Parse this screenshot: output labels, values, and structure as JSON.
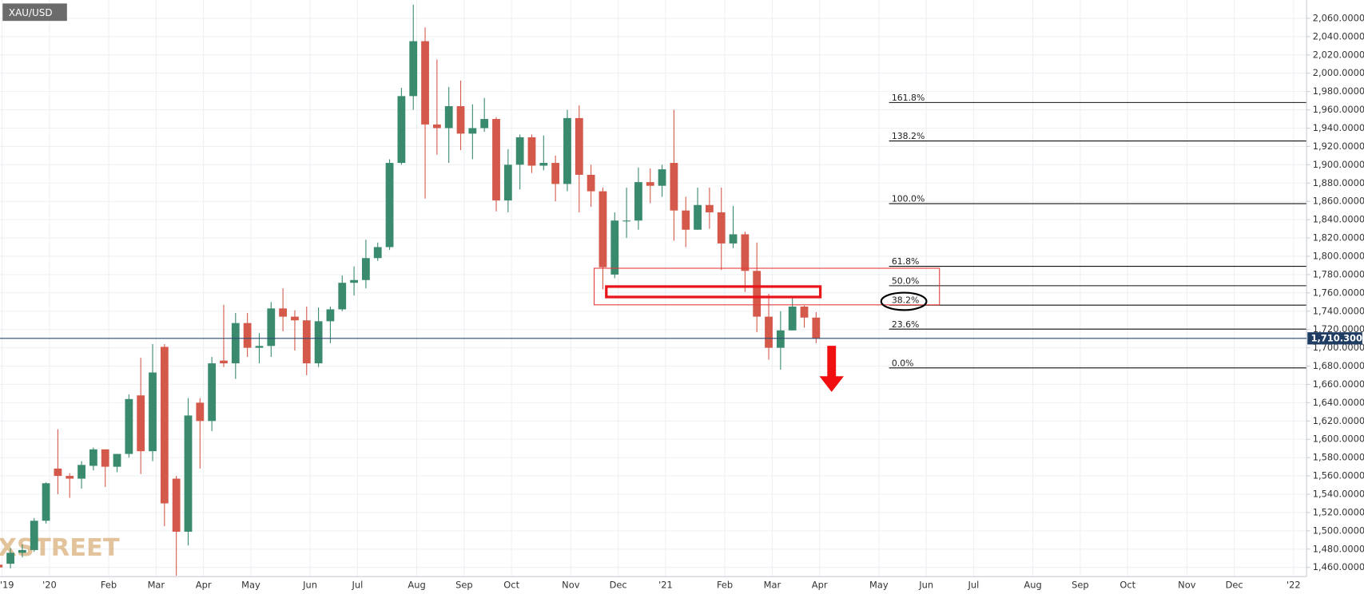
{
  "chart_data": {
    "type": "candlestick",
    "symbol": "XAU/USD",
    "watermark": "FXSTREET",
    "categories": [
      "'19",
      null,
      null,
      null,
      "'20",
      null,
      null,
      null,
      null,
      "Feb",
      null,
      null,
      null,
      "Mar",
      null,
      null,
      null,
      "Apr",
      null,
      null,
      null,
      "May",
      null,
      null,
      null,
      null,
      "Jun",
      null,
      null,
      null,
      "Jul",
      null,
      null,
      null,
      null,
      "Aug",
      null,
      null,
      null,
      "Sep",
      null,
      null,
      null,
      "Oct",
      null,
      null,
      null,
      null,
      "Nov",
      null,
      null,
      null,
      "Dec",
      null,
      null,
      null,
      "'21",
      null,
      null,
      null,
      null,
      "Feb",
      null,
      null,
      null,
      "Mar",
      null,
      null,
      null,
      "Apr",
      null,
      null,
      null,
      null,
      "May",
      null,
      null,
      null,
      "Jun",
      null,
      null,
      null,
      "Jul",
      null,
      null,
      null,
      null,
      "Aug",
      null,
      null,
      null,
      "Sep",
      null,
      null,
      null,
      "Oct",
      null,
      null,
      null,
      null,
      "Nov",
      null,
      null,
      null,
      "Dec",
      null,
      null,
      null,
      null,
      "'22",
      null
    ],
    "open": [
      1463,
      1464,
      1476,
      1479,
      1511,
      1568,
      1560,
      1557,
      1571,
      1589,
      1570,
      1584,
      1648,
      1587,
      1701,
      1557,
      1499,
      1640,
      1620,
      1686,
      1683,
      1727,
      1700,
      1702,
      1743,
      1734,
      1730,
      1683,
      1729,
      1742,
      1771,
      1774,
      1798,
      1810,
      1902,
      1975,
      2035,
      1944,
      1940,
      1964,
      1934,
      1940,
      1950,
      1861,
      1900,
      1930,
      1899,
      1902,
      1879,
      1951,
      1889,
      1871,
      1780,
      1839,
      1839,
      1881,
      1877,
      1902,
      1850,
      1829,
      1856,
      1848,
      1814,
      1824,
      1784,
      1734,
      1700,
      1719,
      1745,
      1733,
      null,
      null,
      null,
      null,
      null,
      null,
      null,
      null,
      null,
      null,
      null,
      null,
      null,
      null,
      null,
      null,
      null,
      null,
      null,
      null,
      null,
      null,
      null,
      null,
      null,
      null,
      null,
      null,
      null,
      null,
      null,
      null,
      null,
      null,
      null,
      null,
      null,
      null,
      null,
      null,
      null
    ],
    "high": [
      1468,
      1481,
      1485,
      1514,
      1553,
      1611,
      1563,
      1576,
      1591,
      1589,
      1584,
      1649,
      1689,
      1704,
      1704,
      1560,
      1645,
      1645,
      1690,
      1747,
      1738,
      1738,
      1716,
      1750,
      1765,
      1741,
      1745,
      1744,
      1745,
      1779,
      1789,
      1818,
      1815,
      1906,
      1984,
      2075,
      2050,
      2015,
      1985,
      1992,
      1966,
      1973,
      1952,
      1917,
      1933,
      1933,
      1932,
      1910,
      1960,
      1965,
      1900,
      1875,
      1848,
      1875,
      1897,
      1896,
      1900,
      1960,
      1865,
      1875,
      1875,
      1875,
      1855,
      1827,
      1815,
      1759,
      1740,
      1755,
      1746,
      1739,
      null,
      null,
      null,
      null,
      null,
      null,
      null,
      null,
      null,
      null,
      null,
      null,
      null,
      null,
      null,
      null,
      null,
      null,
      null,
      null,
      null,
      null,
      null,
      null,
      null,
      null,
      null,
      null,
      null,
      null,
      null,
      null,
      null,
      null,
      null,
      null,
      null,
      null,
      null,
      null,
      null
    ],
    "low": [
      1455,
      1459,
      1471,
      1477,
      1508,
      1540,
      1536,
      1546,
      1566,
      1548,
      1564,
      1580,
      1562,
      1576,
      1505,
      1451,
      1484,
      1568,
      1609,
      1679,
      1666,
      1690,
      1683,
      1690,
      1718,
      1697,
      1670,
      1679,
      1705,
      1740,
      1757,
      1765,
      1795,
      1807,
      1900,
      1960,
      1863,
      1911,
      1902,
      1916,
      1906,
      1936,
      1849,
      1848,
      1873,
      1891,
      1894,
      1860,
      1871,
      1848,
      1854,
      1764,
      1776,
      1820,
      1829,
      1858,
      1865,
      1817,
      1810,
      1829,
      1830,
      1785,
      1809,
      1761,
      1717,
      1687,
      1676,
      1719,
      1722,
      1705,
      null,
      null,
      null,
      null,
      null,
      null,
      null,
      null,
      null,
      null,
      null,
      null,
      null,
      null,
      null,
      null,
      null,
      null,
      null,
      null,
      null,
      null,
      null,
      null,
      null,
      null,
      null,
      null,
      null,
      null,
      null,
      null,
      null,
      null,
      null,
      null,
      null,
      null,
      null,
      null,
      null
    ],
    "close": [
      1460,
      1476,
      1479,
      1511,
      1552,
      1560,
      1557,
      1572,
      1589,
      1570,
      1584,
      1644,
      1587,
      1673,
      1530,
      1499,
      1626,
      1620,
      1683,
      1683,
      1727,
      1700,
      1702,
      1743,
      1734,
      1730,
      1683,
      1729,
      1742,
      1771,
      1774,
      1798,
      1810,
      1902,
      1975,
      2035,
      1944,
      1940,
      1964,
      1934,
      1940,
      1950,
      1861,
      1900,
      1930,
      1899,
      1902,
      1879,
      1951,
      1889,
      1871,
      1788,
      1839,
      1839,
      1881,
      1877,
      1895,
      1850,
      1829,
      1856,
      1848,
      1814,
      1824,
      1784,
      1734,
      1700,
      1719,
      1745,
      1733,
      1710,
      null,
      null,
      null,
      null,
      null,
      null,
      null,
      null,
      null,
      null,
      null,
      null,
      null,
      null,
      null,
      null,
      null,
      null,
      null,
      null,
      null,
      null,
      null,
      null,
      null,
      null,
      null,
      null,
      null,
      null,
      null,
      null,
      null,
      null,
      null,
      null,
      null,
      null,
      null,
      null,
      null
    ],
    "up_color": "#3a8a6e",
    "down_color": "#d4594a",
    "ylim": [
      1450,
      2080
    ],
    "yticks": [
      {
        "value": 1460,
        "label": "1,460.0000"
      },
      {
        "value": 1480,
        "label": "1,480.0000"
      },
      {
        "value": 1500,
        "label": "1,500.0000"
      },
      {
        "value": 1520,
        "label": "1,520.0000"
      },
      {
        "value": 1540,
        "label": "1,540.0000"
      },
      {
        "value": 1560,
        "label": "1,560.0000"
      },
      {
        "value": 1580,
        "label": "1,580.0000"
      },
      {
        "value": 1600,
        "label": "1,600.0000"
      },
      {
        "value": 1620,
        "label": "1,620.0000"
      },
      {
        "value": 1640,
        "label": "1,640.0000"
      },
      {
        "value": 1660,
        "label": "1,660.0000"
      },
      {
        "value": 1680,
        "label": "1,680.0000"
      },
      {
        "value": 1700,
        "label": "1,700.0000"
      },
      {
        "value": 1720,
        "label": "1,720.0000"
      },
      {
        "value": 1740,
        "label": "1,740.0000"
      },
      {
        "value": 1760,
        "label": "1,760.0000"
      },
      {
        "value": 1780,
        "label": "1,780.0000"
      },
      {
        "value": 1800,
        "label": "1,800.0000"
      },
      {
        "value": 1820,
        "label": "1,820.0000"
      },
      {
        "value": 1840,
        "label": "1,840.0000"
      },
      {
        "value": 1860,
        "label": "1,860.0000"
      },
      {
        "value": 1880,
        "label": "1,880.0000"
      },
      {
        "value": 1900,
        "label": "1,900.0000"
      },
      {
        "value": 1920,
        "label": "1,920.0000"
      },
      {
        "value": 1940,
        "label": "1,940.0000"
      },
      {
        "value": 1960,
        "label": "1,960.0000"
      },
      {
        "value": 1980,
        "label": "1,980.0000"
      },
      {
        "value": 2000,
        "label": "2,000.0000"
      },
      {
        "value": 2020,
        "label": "2,020.0000"
      },
      {
        "value": 2040,
        "label": "2,040.0000"
      },
      {
        "value": 2060,
        "label": "2,060.0000"
      }
    ],
    "grid": true,
    "last_price": {
      "value": 1710.3,
      "label": "1,710.3000"
    },
    "fibonacci": [
      {
        "label": "161.8%",
        "value": 1968
      },
      {
        "label": "138.2%",
        "value": 1926
      },
      {
        "label": "100.0%",
        "value": 1857.5
      },
      {
        "label": "61.8%",
        "value": 1789
      },
      {
        "label": "50.0%",
        "value": 1767.8
      },
      {
        "label": "38.2%",
        "value": 1746.6
      },
      {
        "label": "23.6%",
        "value": 1720.4
      },
      {
        "label": "0.0%",
        "value": 1678
      }
    ]
  }
}
